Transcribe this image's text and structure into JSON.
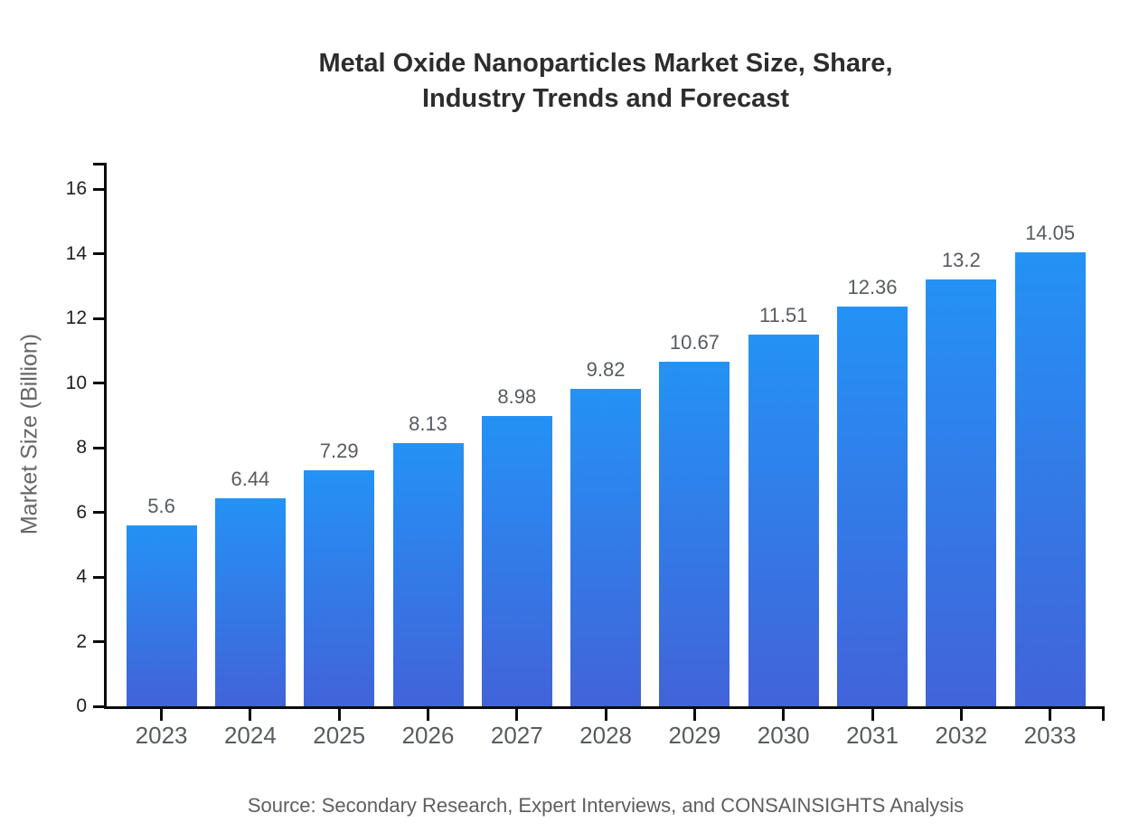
{
  "title": {
    "line1": "Metal Oxide Nanoparticles Market Size, Share,",
    "line2": "Industry Trends and Forecast"
  },
  "source_note": "Source: Secondary Research, Expert Interviews, and CONSAINSIGHTS Analysis",
  "chart_data": {
    "type": "bar",
    "title": "Metal Oxide Nanoparticles Market Size, Share, Industry Trends and Forecast",
    "categories": [
      "2023",
      "2024",
      "2025",
      "2026",
      "2027",
      "2028",
      "2029",
      "2030",
      "2031",
      "2032",
      "2033"
    ],
    "values": [
      5.6,
      6.44,
      7.29,
      8.13,
      8.98,
      9.82,
      10.67,
      11.51,
      12.36,
      13.2,
      14.05
    ],
    "value_labels": [
      "5.6",
      "6.44",
      "7.29",
      "8.13",
      "8.98",
      "9.82",
      "10.67",
      "11.51",
      "12.36",
      "13.2",
      "14.05"
    ],
    "xlabel": "",
    "ylabel": "Market Size (Billion)",
    "ylim": [
      0,
      16
    ],
    "yticks": [
      0,
      2,
      4,
      6,
      8,
      10,
      12,
      14,
      16
    ],
    "grid": false,
    "legend_position": "none",
    "colors": {
      "bar_gradient_top": "#2492f5",
      "bar_gradient_bottom": "#4263d9",
      "axis": "#0b0b0b",
      "title_text": "#2d2d2d",
      "tick_label_text": "#1f1f1f",
      "category_label_text": "#575b61",
      "value_label_text": "#575b61",
      "axis_title_text": "#666666",
      "source_text": "#5e5e5e",
      "background": "#ffffff"
    }
  }
}
